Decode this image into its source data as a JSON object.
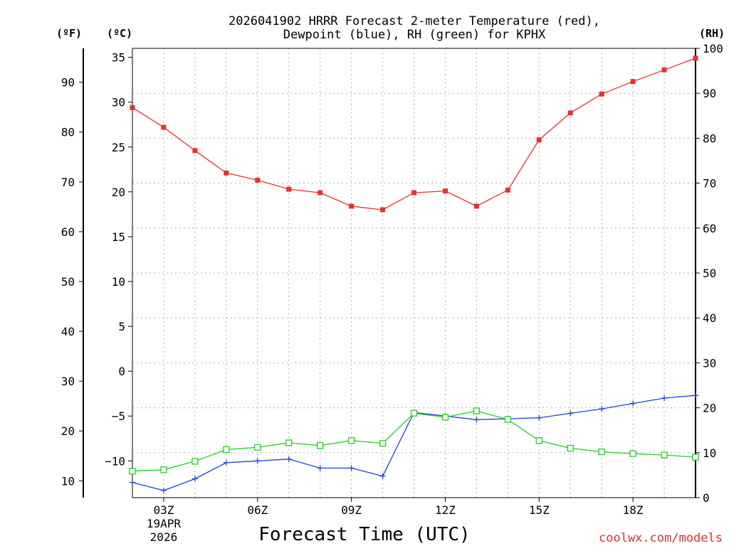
{
  "chart_data": {
    "type": "line",
    "title": "2026041902 HRRR Forecast 2-meter Temperature (red),",
    "subtitle": "Dewpoint (blue), RH (green) for KPHX",
    "xlabel": "Forecast Time (UTC)",
    "credit": "coolwx.com/models",
    "units": {
      "f": "(ºF)",
      "c": "(ºC)",
      "rh": "(RH)"
    },
    "x_hours": [
      2,
      3,
      4,
      5,
      6,
      7,
      8,
      9,
      10,
      11,
      12,
      13,
      14,
      15,
      16,
      17,
      18,
      19,
      20
    ],
    "xlim": [
      2,
      20
    ],
    "x_ticks": [
      {
        "hour": 3,
        "label": "03Z",
        "sub1": "19APR",
        "sub2": "2026"
      },
      {
        "hour": 6,
        "label": "06Z"
      },
      {
        "hour": 9,
        "label": "09Z"
      },
      {
        "hour": 12,
        "label": "12Z"
      },
      {
        "hour": 15,
        "label": "15Z"
      },
      {
        "hour": 18,
        "label": "18Z"
      }
    ],
    "c_axis": {
      "lim": [
        -14.1,
        36
      ],
      "ticks": [
        35,
        30,
        25,
        20,
        15,
        10,
        5,
        0,
        -5,
        -10
      ],
      "labels": [
        "35",
        "30",
        "25",
        "20",
        "15",
        "10",
        "5",
        "0",
        "−5",
        "−10"
      ]
    },
    "f_axis": {
      "ticks": [
        90,
        80,
        70,
        60,
        50,
        40,
        30,
        20,
        10
      ],
      "labels": [
        "90",
        "80",
        "70",
        "60",
        "50",
        "40",
        "30",
        "20",
        "10"
      ]
    },
    "rh_axis": {
      "lim": [
        0,
        100
      ],
      "ticks": [
        100,
        90,
        80,
        70,
        60,
        50,
        40,
        30,
        20,
        10,
        0
      ],
      "labels": [
        "100",
        "90",
        "80",
        "70",
        "60",
        "50",
        "40",
        "30",
        "20",
        "10",
        "0"
      ]
    },
    "series": [
      {
        "name": "Temperature",
        "axis": "c",
        "color": "#e83030",
        "marker": "filled-square",
        "values": [
          29.4,
          27.2,
          24.6,
          22.1,
          21.3,
          20.3,
          19.9,
          18.4,
          18.0,
          19.9,
          20.1,
          18.4,
          20.2,
          25.8,
          28.8,
          30.9,
          32.3,
          33.6,
          34.9
        ]
      },
      {
        "name": "Dewpoint",
        "axis": "c",
        "color": "#2040e0",
        "marker": "plus",
        "values": [
          -12.4,
          -13.3,
          -12.0,
          -10.2,
          -10.0,
          -9.8,
          -10.8,
          -10.8,
          -11.7,
          -4.6,
          -5.0,
          -5.4,
          -5.3,
          -5.2,
          -4.7,
          -4.2,
          -3.6,
          -3.0,
          -2.7
        ]
      },
      {
        "name": "RH",
        "axis": "rh",
        "color": "#20d020",
        "marker": "open-square",
        "values": [
          5.9,
          6.2,
          8.1,
          10.7,
          11.2,
          12.2,
          11.6,
          12.7,
          12.1,
          18.8,
          17.9,
          19.3,
          17.4,
          12.7,
          11.0,
          10.2,
          9.8,
          9.5,
          9.0
        ]
      }
    ]
  }
}
